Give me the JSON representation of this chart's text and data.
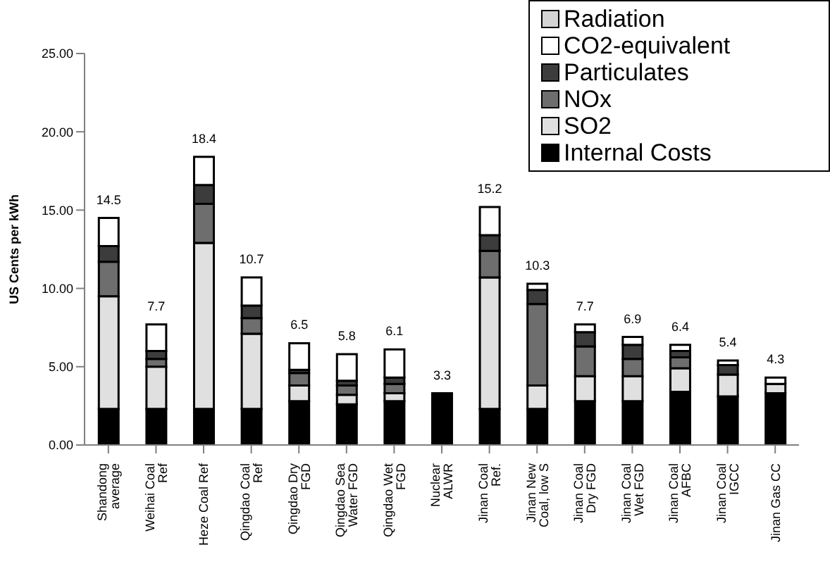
{
  "chart_data": {
    "type": "bar",
    "stacked": true,
    "ylabel": "US Cents per kWh",
    "categories": [
      "Shandong average",
      "Weihai Coal Ref",
      "Heze Coal Ref",
      "Qingdao Coal Ref",
      "Qingdao Dry FGD",
      "Qingdao Sea Water FGD",
      "Qingdao Wet FGD",
      "Nuclear ALWR",
      "Jinan Coal Ref.",
      "Jinan New Coal, low S",
      "Jinan Coal Dry FGD",
      "Jinan Coal Wet FGD",
      "Jinan Coal AFBC",
      "Jinan Coal IGCC",
      "Jinan Gas CC"
    ],
    "series": [
      {
        "name": "Internal Costs",
        "color": "#000000",
        "values": [
          2.3,
          2.3,
          2.3,
          2.3,
          2.8,
          2.6,
          2.8,
          3.3,
          2.3,
          2.3,
          2.8,
          2.8,
          3.4,
          3.1,
          3.3
        ]
      },
      {
        "name": "SO2",
        "color": "#e0e0e0",
        "values": [
          7.2,
          2.7,
          10.6,
          4.8,
          1.0,
          0.6,
          0.5,
          0,
          8.4,
          1.5,
          1.6,
          1.6,
          1.5,
          1.4,
          0.6
        ]
      },
      {
        "name": "NOx",
        "color": "#6e6e6e",
        "values": [
          2.2,
          0.5,
          2.5,
          1.0,
          0.8,
          0.6,
          0.6,
          0,
          1.7,
          5.2,
          1.9,
          1.1,
          0.7,
          0,
          0
        ]
      },
      {
        "name": "Particulates",
        "color": "#3c3c3c",
        "values": [
          1.0,
          0.5,
          1.2,
          0.8,
          0.2,
          0.3,
          0.4,
          0,
          1.0,
          0.9,
          0.9,
          0.9,
          0.4,
          0.6,
          0
        ]
      },
      {
        "name": "CO2-equivalent",
        "color": "#ffffff",
        "values": [
          1.8,
          1.7,
          1.8,
          1.8,
          1.7,
          1.7,
          1.8,
          0,
          1.8,
          0.4,
          0.5,
          0.5,
          0.4,
          0.3,
          0.4
        ]
      },
      {
        "name": "Radiation",
        "color": "#d4d4d4",
        "values": [
          0,
          0,
          0,
          0,
          0,
          0,
          0,
          0,
          0,
          0,
          0,
          0,
          0,
          0,
          0
        ]
      }
    ],
    "totals": [
      "14.5",
      "7.7",
      "18.4",
      "10.7",
      "6.5",
      "5.8",
      "6.1",
      "3.3",
      "15.2",
      "10.3",
      "7.7",
      "6.9",
      "6.4",
      "5.4",
      "4.3"
    ],
    "ylim": [
      0,
      25
    ],
    "yticks": [
      {
        "value": 0,
        "label": "0.00"
      },
      {
        "value": 5,
        "label": "5.00"
      },
      {
        "value": 10,
        "label": "10.00"
      },
      {
        "value": 15,
        "label": "15.00"
      },
      {
        "value": 20,
        "label": "20.00"
      },
      {
        "value": 25,
        "label": "25.00"
      }
    ],
    "legend": "top right"
  }
}
